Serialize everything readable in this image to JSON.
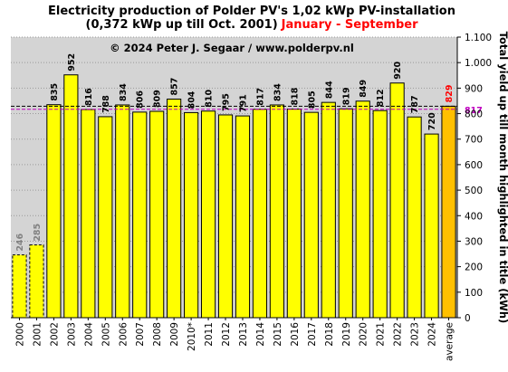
{
  "title": {
    "line1": "Electricity production  of Polder PV's 1,02 kWp PV-installation",
    "line2": "(0,372 kWp up till Oct. 2001)",
    "line2_accent": "January - September"
  },
  "copyright": "© 2024 Peter J. Segaar / www.polderpv.nl",
  "colors": {
    "plot_bg": "#d4d4d4",
    "bar": "#ffff00",
    "bar_average": "#ffc000",
    "bar_stroke": "#000000",
    "label_default": "#000000",
    "label_partial": "#808080",
    "label_average": "#ff0000",
    "ref_line": "#c000c0"
  },
  "chart_data": {
    "type": "bar",
    "categories": [
      "2000",
      "2001",
      "2002",
      "2003",
      "2004",
      "2005",
      "2006",
      "2007",
      "2008",
      "2009",
      "2010*",
      "2011",
      "2012",
      "2013",
      "2014",
      "2015",
      "2016",
      "2017",
      "2018",
      "2019",
      "2020",
      "2021",
      "2022",
      "2023",
      "2024",
      "average"
    ],
    "values": [
      246,
      285,
      835,
      952,
      816,
      788,
      834,
      806,
      809,
      857,
      804,
      810,
      795,
      791,
      817,
      834,
      818,
      805,
      844,
      819,
      849,
      812,
      920,
      787,
      720,
      829
    ],
    "value_labels": [
      "246",
      "285",
      "835",
      "952",
      "816",
      "788",
      "834",
      "806",
      "809",
      "857",
      "804",
      "810",
      "795",
      "791",
      "817",
      "834",
      "818",
      "805",
      "844",
      "819",
      "849",
      "812",
      "920",
      "787",
      "720",
      "829"
    ],
    "partial_years": [
      "2000",
      "2001"
    ],
    "reference_line": {
      "value": 817,
      "label": "817"
    },
    "ylim": [
      0,
      1100
    ],
    "yticks": [
      0,
      100,
      200,
      300,
      400,
      500,
      600,
      700,
      800,
      900,
      1000,
      1100
    ],
    "ytick_labels": [
      "0",
      "100",
      "200",
      "300",
      "400",
      "500",
      "600",
      "700",
      "800",
      "900",
      "1.000",
      "1.100"
    ],
    "ylabel": "Total yield up till month highlighted in title (kWh)",
    "y_axis_side": "right",
    "grid": "horizontal dotted"
  }
}
